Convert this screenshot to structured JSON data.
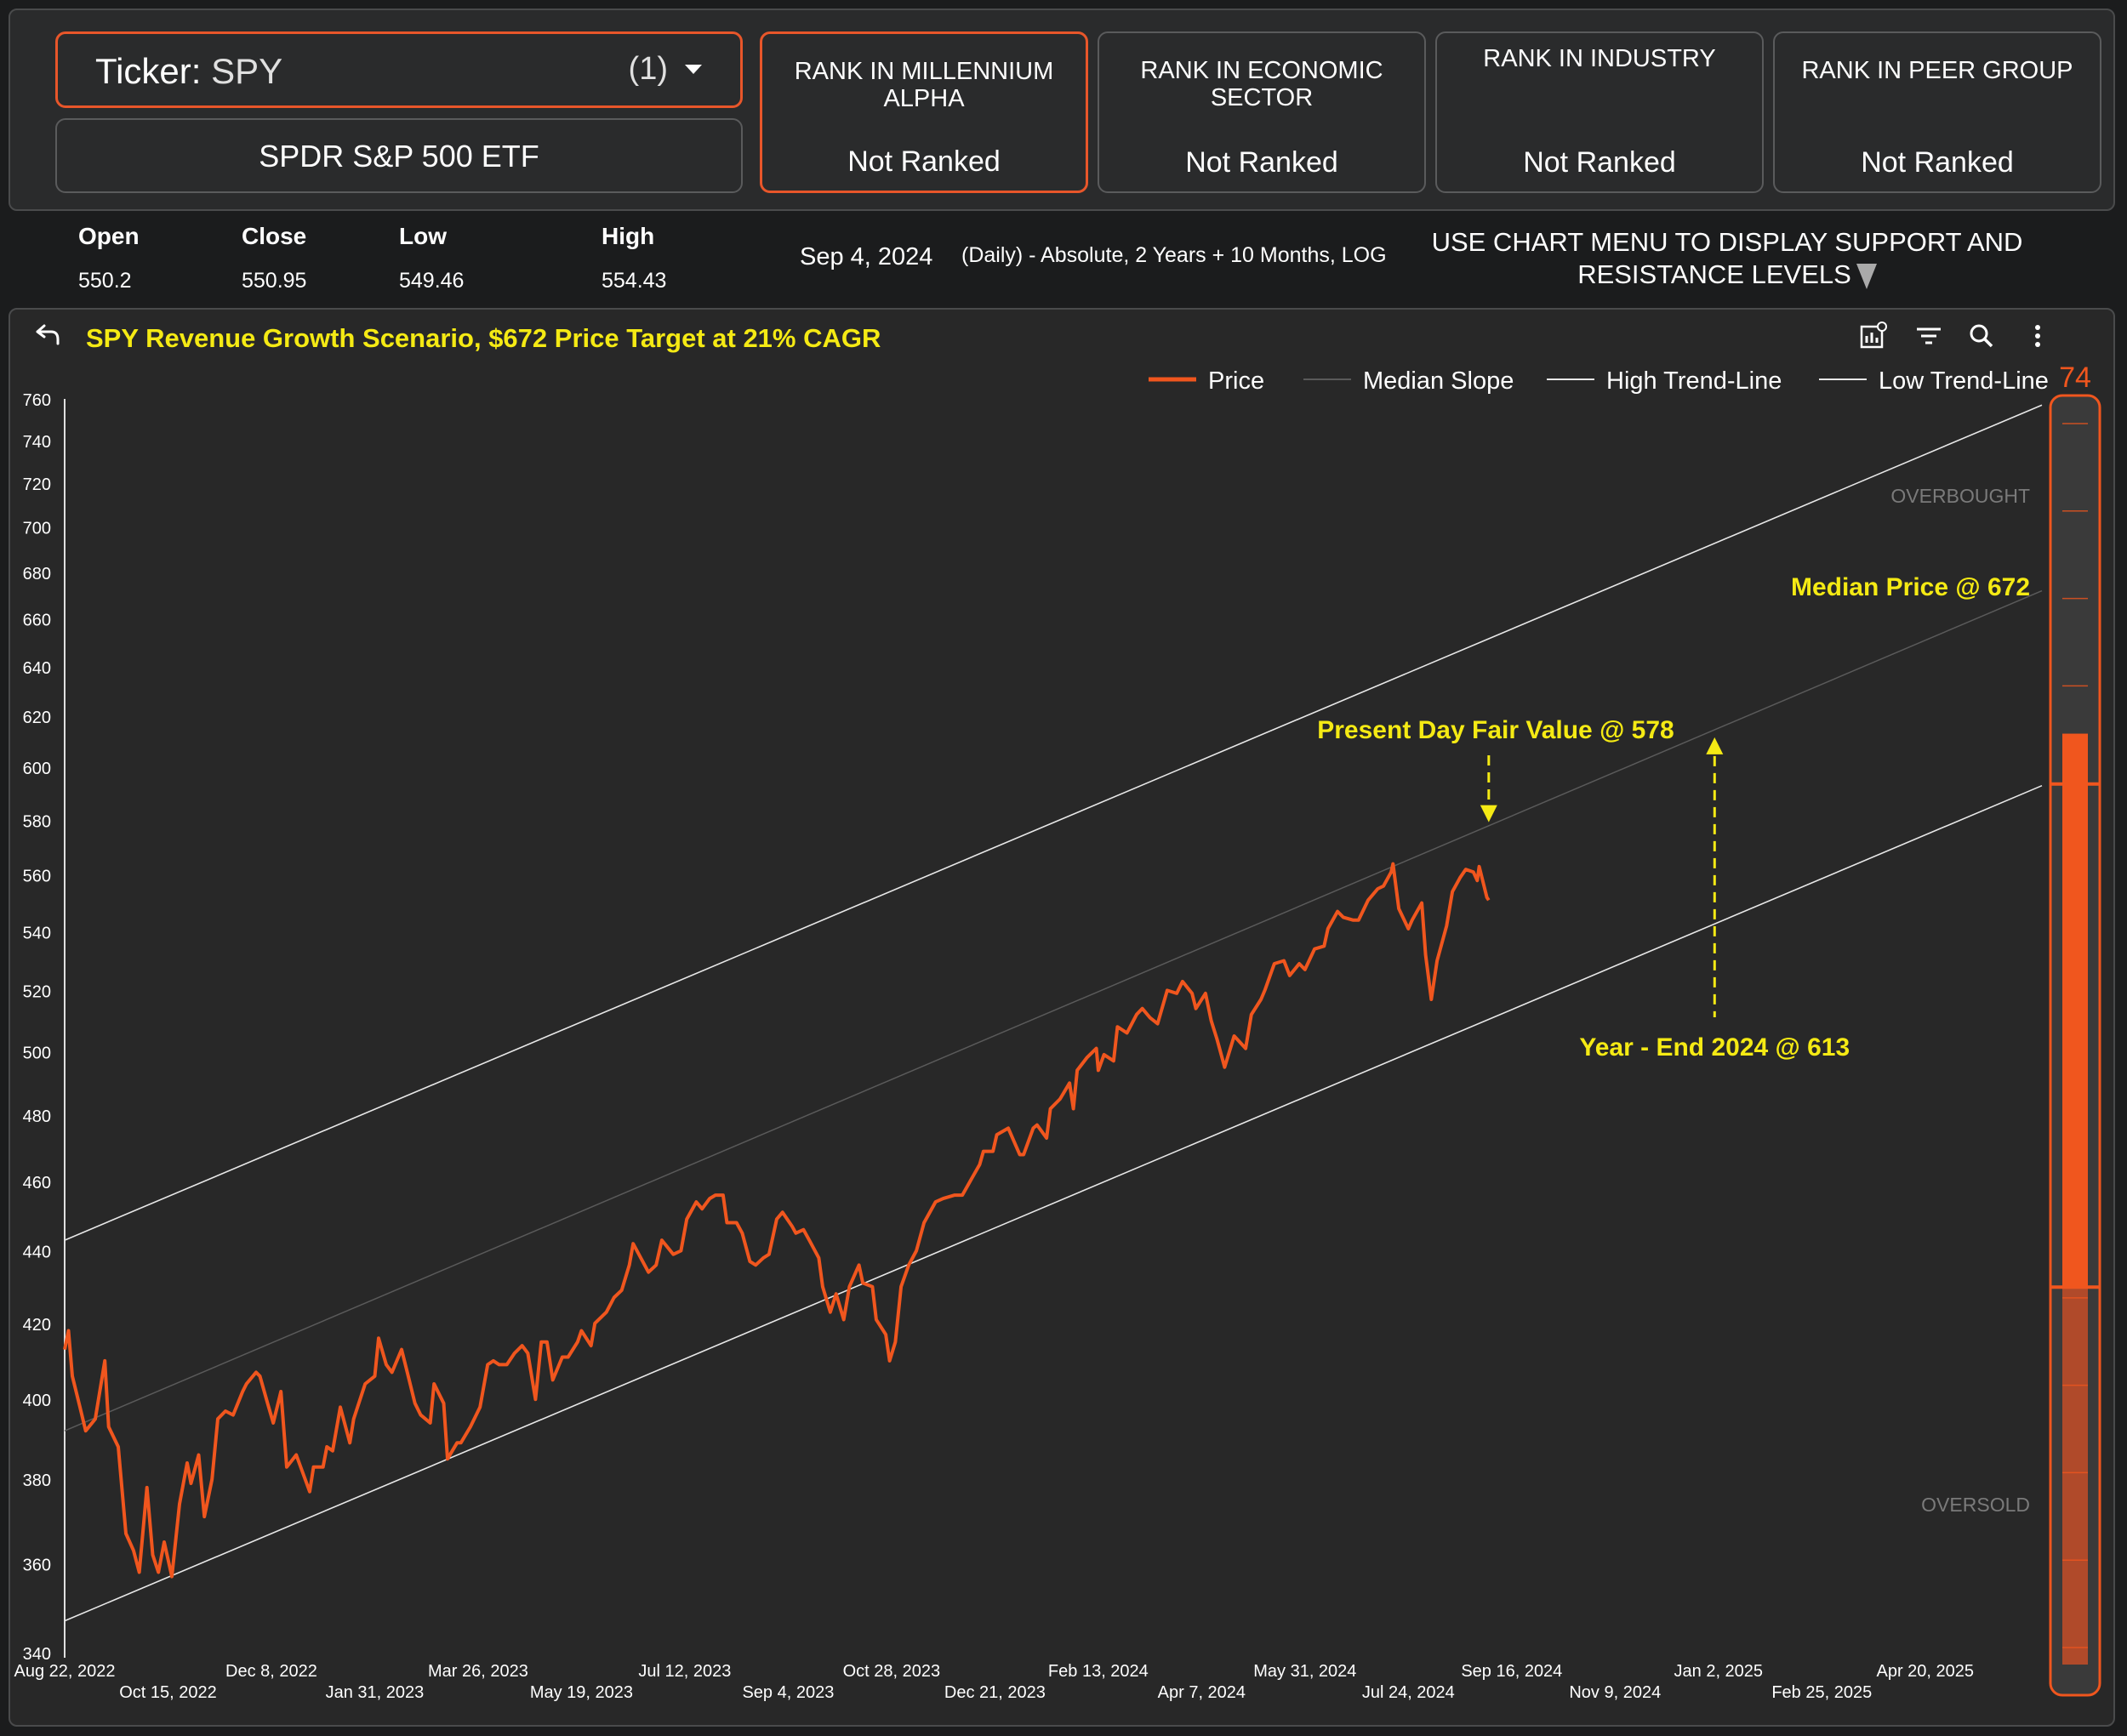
{
  "header": {
    "ticker_label": "Ticker:",
    "ticker_value": "SPY",
    "ticker_count": "(1)",
    "security_name": "SPDR S&P 500 ETF",
    "ranks": [
      {
        "title": "RANK IN MILLENNIUM ALPHA",
        "value": "Not Ranked"
      },
      {
        "title": "RANK IN ECONOMIC SECTOR",
        "value": "Not Ranked"
      },
      {
        "title": "RANK IN INDUSTRY",
        "value": "Not Ranked"
      },
      {
        "title": "RANK IN PEER GROUP",
        "value": "Not Ranked"
      }
    ]
  },
  "stats": {
    "open_label": "Open",
    "open": "550.2",
    "close_label": "Close",
    "close": "550.95",
    "low_label": "Low",
    "low": "549.46",
    "high_label": "High",
    "high": "554.43",
    "date": "Sep 4, 2024",
    "info": "(Daily) - Absolute, 2 Years + 10 Months, LOG",
    "support_note": "USE CHART MENU TO DISPLAY SUPPORT AND RESISTANCE LEVELS"
  },
  "toolbar_icons": [
    "chart-settings-icon",
    "filter-icon",
    "zoom-icon",
    "more-options-icon"
  ],
  "colors": {
    "price": "#f0561e",
    "median": "#5a5a5a",
    "trend": "#e8e8e8",
    "annotation": "#f5ea14",
    "panel_bg": "#282828"
  },
  "chart_data": {
    "type": "line",
    "title": "SPY Revenue Growth Scenario, $672 Price Target at 21% CAGR",
    "y_scale": "log",
    "ylim": [
      340,
      760
    ],
    "y_ticks": [
      760,
      740,
      720,
      700,
      680,
      660,
      640,
      620,
      600,
      580,
      560,
      540,
      520,
      500,
      480,
      460,
      440,
      420,
      400,
      380,
      360,
      340
    ],
    "xlim": [
      "2022-08-22",
      "2025-06-20"
    ],
    "x_ticks": [
      {
        "date": "2022-08-22",
        "label": "Aug 22, 2022"
      },
      {
        "date": "2022-10-15",
        "label": "Oct 15, 2022"
      },
      {
        "date": "2022-12-08",
        "label": "Dec 8, 2022"
      },
      {
        "date": "2023-01-31",
        "label": "Jan 31, 2023"
      },
      {
        "date": "2023-03-26",
        "label": "Mar 26, 2023"
      },
      {
        "date": "2023-05-19",
        "label": "May 19, 2023"
      },
      {
        "date": "2023-07-12",
        "label": "Jul 12, 2023"
      },
      {
        "date": "2023-09-04",
        "label": "Sep 4, 2023"
      },
      {
        "date": "2023-10-28",
        "label": "Oct 28, 2023"
      },
      {
        "date": "2023-12-21",
        "label": "Dec 21, 2023"
      },
      {
        "date": "2024-02-13",
        "label": "Feb 13, 2024"
      },
      {
        "date": "2024-04-07",
        "label": "Apr 7, 2024"
      },
      {
        "date": "2024-05-31",
        "label": "May 31, 2024"
      },
      {
        "date": "2024-07-24",
        "label": "Jul 24, 2024"
      },
      {
        "date": "2024-09-16",
        "label": "Sep 16, 2024"
      },
      {
        "date": "2024-11-09",
        "label": "Nov 9, 2024"
      },
      {
        "date": "2025-01-02",
        "label": "Jan 2, 2025"
      },
      {
        "date": "2025-02-25",
        "label": "Feb 25, 2025"
      },
      {
        "date": "2025-04-20",
        "label": "Apr 20, 2025"
      }
    ],
    "legend": [
      "Price",
      "Median Slope",
      "High Trend-Line",
      "Low Trend-Line"
    ],
    "legend_position": "top-right",
    "grid": false,
    "series": [
      {
        "name": "Price",
        "points": [
          [
            "2022-08-22",
            413
          ],
          [
            "2022-08-24",
            418
          ],
          [
            "2022-08-26",
            406
          ],
          [
            "2022-08-30",
            398
          ],
          [
            "2022-09-02",
            392
          ],
          [
            "2022-09-07",
            395
          ],
          [
            "2022-09-12",
            410
          ],
          [
            "2022-09-14",
            393
          ],
          [
            "2022-09-19",
            388
          ],
          [
            "2022-09-23",
            367
          ],
          [
            "2022-09-27",
            363
          ],
          [
            "2022-09-30",
            358
          ],
          [
            "2022-10-04",
            378
          ],
          [
            "2022-10-07",
            362
          ],
          [
            "2022-10-10",
            358
          ],
          [
            "2022-10-13",
            365
          ],
          [
            "2022-10-17",
            357
          ],
          [
            "2022-10-21",
            374
          ],
          [
            "2022-10-25",
            384
          ],
          [
            "2022-10-27",
            379
          ],
          [
            "2022-10-31",
            386
          ],
          [
            "2022-11-03",
            371
          ],
          [
            "2022-11-07",
            380
          ],
          [
            "2022-11-10",
            395
          ],
          [
            "2022-11-14",
            397
          ],
          [
            "2022-11-18",
            396
          ],
          [
            "2022-11-23",
            402
          ],
          [
            "2022-11-25",
            404
          ],
          [
            "2022-11-30",
            407
          ],
          [
            "2022-12-02",
            406
          ],
          [
            "2022-12-06",
            399
          ],
          [
            "2022-12-09",
            394
          ],
          [
            "2022-12-13",
            402
          ],
          [
            "2022-12-16",
            383
          ],
          [
            "2022-12-21",
            386
          ],
          [
            "2022-12-28",
            377
          ],
          [
            "2022-12-30",
            383
          ],
          [
            "2023-01-04",
            383
          ],
          [
            "2023-01-06",
            388
          ],
          [
            "2023-01-09",
            387
          ],
          [
            "2023-01-13",
            398
          ],
          [
            "2023-01-18",
            389
          ],
          [
            "2023-01-20",
            395
          ],
          [
            "2023-01-26",
            404
          ],
          [
            "2023-01-31",
            406
          ],
          [
            "2023-02-02",
            416
          ],
          [
            "2023-02-06",
            409
          ],
          [
            "2023-02-09",
            407
          ],
          [
            "2023-02-14",
            413
          ],
          [
            "2023-02-17",
            407
          ],
          [
            "2023-02-21",
            399
          ],
          [
            "2023-02-24",
            396
          ],
          [
            "2023-03-01",
            394
          ],
          [
            "2023-03-03",
            404
          ],
          [
            "2023-03-08",
            399
          ],
          [
            "2023-03-10",
            385
          ],
          [
            "2023-03-15",
            389
          ],
          [
            "2023-03-17",
            389
          ],
          [
            "2023-03-22",
            393
          ],
          [
            "2023-03-27",
            398
          ],
          [
            "2023-03-31",
            409
          ],
          [
            "2023-04-03",
            410
          ],
          [
            "2023-04-06",
            409
          ],
          [
            "2023-04-10",
            409
          ],
          [
            "2023-04-14",
            412
          ],
          [
            "2023-04-18",
            414
          ],
          [
            "2023-04-21",
            412
          ],
          [
            "2023-04-25",
            400
          ],
          [
            "2023-04-28",
            415
          ],
          [
            "2023-05-01",
            415
          ],
          [
            "2023-05-04",
            405
          ],
          [
            "2023-05-09",
            411
          ],
          [
            "2023-05-12",
            411
          ],
          [
            "2023-05-17",
            415
          ],
          [
            "2023-05-19",
            418
          ],
          [
            "2023-05-24",
            414
          ],
          [
            "2023-05-26",
            420
          ],
          [
            "2023-06-01",
            423
          ],
          [
            "2023-06-05",
            427
          ],
          [
            "2023-06-09",
            429
          ],
          [
            "2023-06-13",
            436
          ],
          [
            "2023-06-15",
            442
          ],
          [
            "2023-06-20",
            437
          ],
          [
            "2023-06-23",
            434
          ],
          [
            "2023-06-27",
            436
          ],
          [
            "2023-06-30",
            443
          ],
          [
            "2023-07-06",
            439
          ],
          [
            "2023-07-10",
            440
          ],
          [
            "2023-07-13",
            449
          ],
          [
            "2023-07-18",
            454
          ],
          [
            "2023-07-21",
            452
          ],
          [
            "2023-07-25",
            455
          ],
          [
            "2023-07-28",
            456
          ],
          [
            "2023-08-01",
            456
          ],
          [
            "2023-08-03",
            448
          ],
          [
            "2023-08-08",
            448
          ],
          [
            "2023-08-11",
            445
          ],
          [
            "2023-08-15",
            437
          ],
          [
            "2023-08-18",
            436
          ],
          [
            "2023-08-22",
            438
          ],
          [
            "2023-08-25",
            439
          ],
          [
            "2023-08-29",
            449
          ],
          [
            "2023-09-01",
            451
          ],
          [
            "2023-09-06",
            447
          ],
          [
            "2023-09-08",
            445
          ],
          [
            "2023-09-12",
            446
          ],
          [
            "2023-09-15",
            443
          ],
          [
            "2023-09-20",
            438
          ],
          [
            "2023-09-22",
            430
          ],
          [
            "2023-09-26",
            423
          ],
          [
            "2023-09-29",
            428
          ],
          [
            "2023-10-03",
            421
          ],
          [
            "2023-10-06",
            430
          ],
          [
            "2023-10-11",
            436
          ],
          [
            "2023-10-13",
            431
          ],
          [
            "2023-10-18",
            430
          ],
          [
            "2023-10-20",
            421
          ],
          [
            "2023-10-25",
            417
          ],
          [
            "2023-10-27",
            410
          ],
          [
            "2023-10-30",
            415
          ],
          [
            "2023-11-02",
            430
          ],
          [
            "2023-11-06",
            436
          ],
          [
            "2023-11-10",
            440
          ],
          [
            "2023-11-14",
            448
          ],
          [
            "2023-11-20",
            454
          ],
          [
            "2023-11-24",
            455
          ],
          [
            "2023-11-30",
            456
          ],
          [
            "2023-12-04",
            456
          ],
          [
            "2023-12-08",
            460
          ],
          [
            "2023-12-13",
            465
          ],
          [
            "2023-12-15",
            469
          ],
          [
            "2023-12-20",
            469
          ],
          [
            "2023-12-22",
            474
          ],
          [
            "2023-12-28",
            476
          ],
          [
            "2024-01-03",
            468
          ],
          [
            "2024-01-05",
            468
          ],
          [
            "2024-01-10",
            476
          ],
          [
            "2024-01-12",
            477
          ],
          [
            "2024-01-17",
            473
          ],
          [
            "2024-01-19",
            482
          ],
          [
            "2024-01-24",
            485
          ],
          [
            "2024-01-29",
            490
          ],
          [
            "2024-01-31",
            482
          ],
          [
            "2024-02-02",
            494
          ],
          [
            "2024-02-07",
            498
          ],
          [
            "2024-02-12",
            501
          ],
          [
            "2024-02-13",
            494
          ],
          [
            "2024-02-16",
            499
          ],
          [
            "2024-02-21",
            497
          ],
          [
            "2024-02-23",
            508
          ],
          [
            "2024-02-28",
            506
          ],
          [
            "2024-03-04",
            512
          ],
          [
            "2024-03-07",
            514
          ],
          [
            "2024-03-11",
            511
          ],
          [
            "2024-03-15",
            509
          ],
          [
            "2024-03-20",
            520
          ],
          [
            "2024-03-25",
            519
          ],
          [
            "2024-03-28",
            523
          ],
          [
            "2024-04-02",
            519
          ],
          [
            "2024-04-04",
            514
          ],
          [
            "2024-04-09",
            519
          ],
          [
            "2024-04-12",
            510
          ],
          [
            "2024-04-15",
            504
          ],
          [
            "2024-04-19",
            495
          ],
          [
            "2024-04-24",
            505
          ],
          [
            "2024-04-30",
            501
          ],
          [
            "2024-05-03",
            512
          ],
          [
            "2024-05-08",
            517
          ],
          [
            "2024-05-10",
            520
          ],
          [
            "2024-05-15",
            529
          ],
          [
            "2024-05-20",
            530
          ],
          [
            "2024-05-23",
            525
          ],
          [
            "2024-05-28",
            529
          ],
          [
            "2024-05-31",
            527
          ],
          [
            "2024-06-05",
            534
          ],
          [
            "2024-06-10",
            535
          ],
          [
            "2024-06-12",
            541
          ],
          [
            "2024-06-17",
            547
          ],
          [
            "2024-06-20",
            545
          ],
          [
            "2024-06-25",
            544
          ],
          [
            "2024-06-28",
            544
          ],
          [
            "2024-07-03",
            551
          ],
          [
            "2024-07-08",
            555
          ],
          [
            "2024-07-11",
            556
          ],
          [
            "2024-07-15",
            561
          ],
          [
            "2024-07-16",
            564
          ],
          [
            "2024-07-19",
            548
          ],
          [
            "2024-07-24",
            541
          ],
          [
            "2024-07-26",
            544
          ],
          [
            "2024-07-31",
            550
          ],
          [
            "2024-08-02",
            532
          ],
          [
            "2024-08-05",
            517
          ],
          [
            "2024-08-08",
            530
          ],
          [
            "2024-08-13",
            542
          ],
          [
            "2024-08-16",
            554
          ],
          [
            "2024-08-20",
            559
          ],
          [
            "2024-08-23",
            562
          ],
          [
            "2024-08-27",
            561
          ],
          [
            "2024-08-29",
            558
          ],
          [
            "2024-08-30",
            563
          ],
          [
            "2024-09-03",
            552
          ],
          [
            "2024-09-04",
            551
          ]
        ]
      },
      {
        "name": "Median Slope",
        "points": [
          [
            "2022-08-22",
            392
          ],
          [
            "2025-06-20",
            672
          ]
        ]
      },
      {
        "name": "High Trend-Line",
        "points": [
          [
            "2022-08-22",
            443
          ],
          [
            "2025-06-20",
            757
          ]
        ]
      },
      {
        "name": "Low Trend-Line",
        "points": [
          [
            "2022-08-22",
            347
          ],
          [
            "2025-06-20",
            593
          ]
        ]
      }
    ],
    "annotations": [
      {
        "text": "Present Day Fair Value @ 578",
        "date": "2024-09-04",
        "value": 578,
        "arrow": "down"
      },
      {
        "text": "Year - End 2024 @ 613",
        "date": "2024-12-31",
        "value": 613,
        "arrow": "up"
      },
      {
        "text": "Median Price @ 672",
        "date": "2025-06-20",
        "value": 672
      }
    ],
    "gauge": {
      "value": 74,
      "overbought_label": "OVERBOUGHT",
      "oversold_label": "OVERSOLD"
    }
  }
}
